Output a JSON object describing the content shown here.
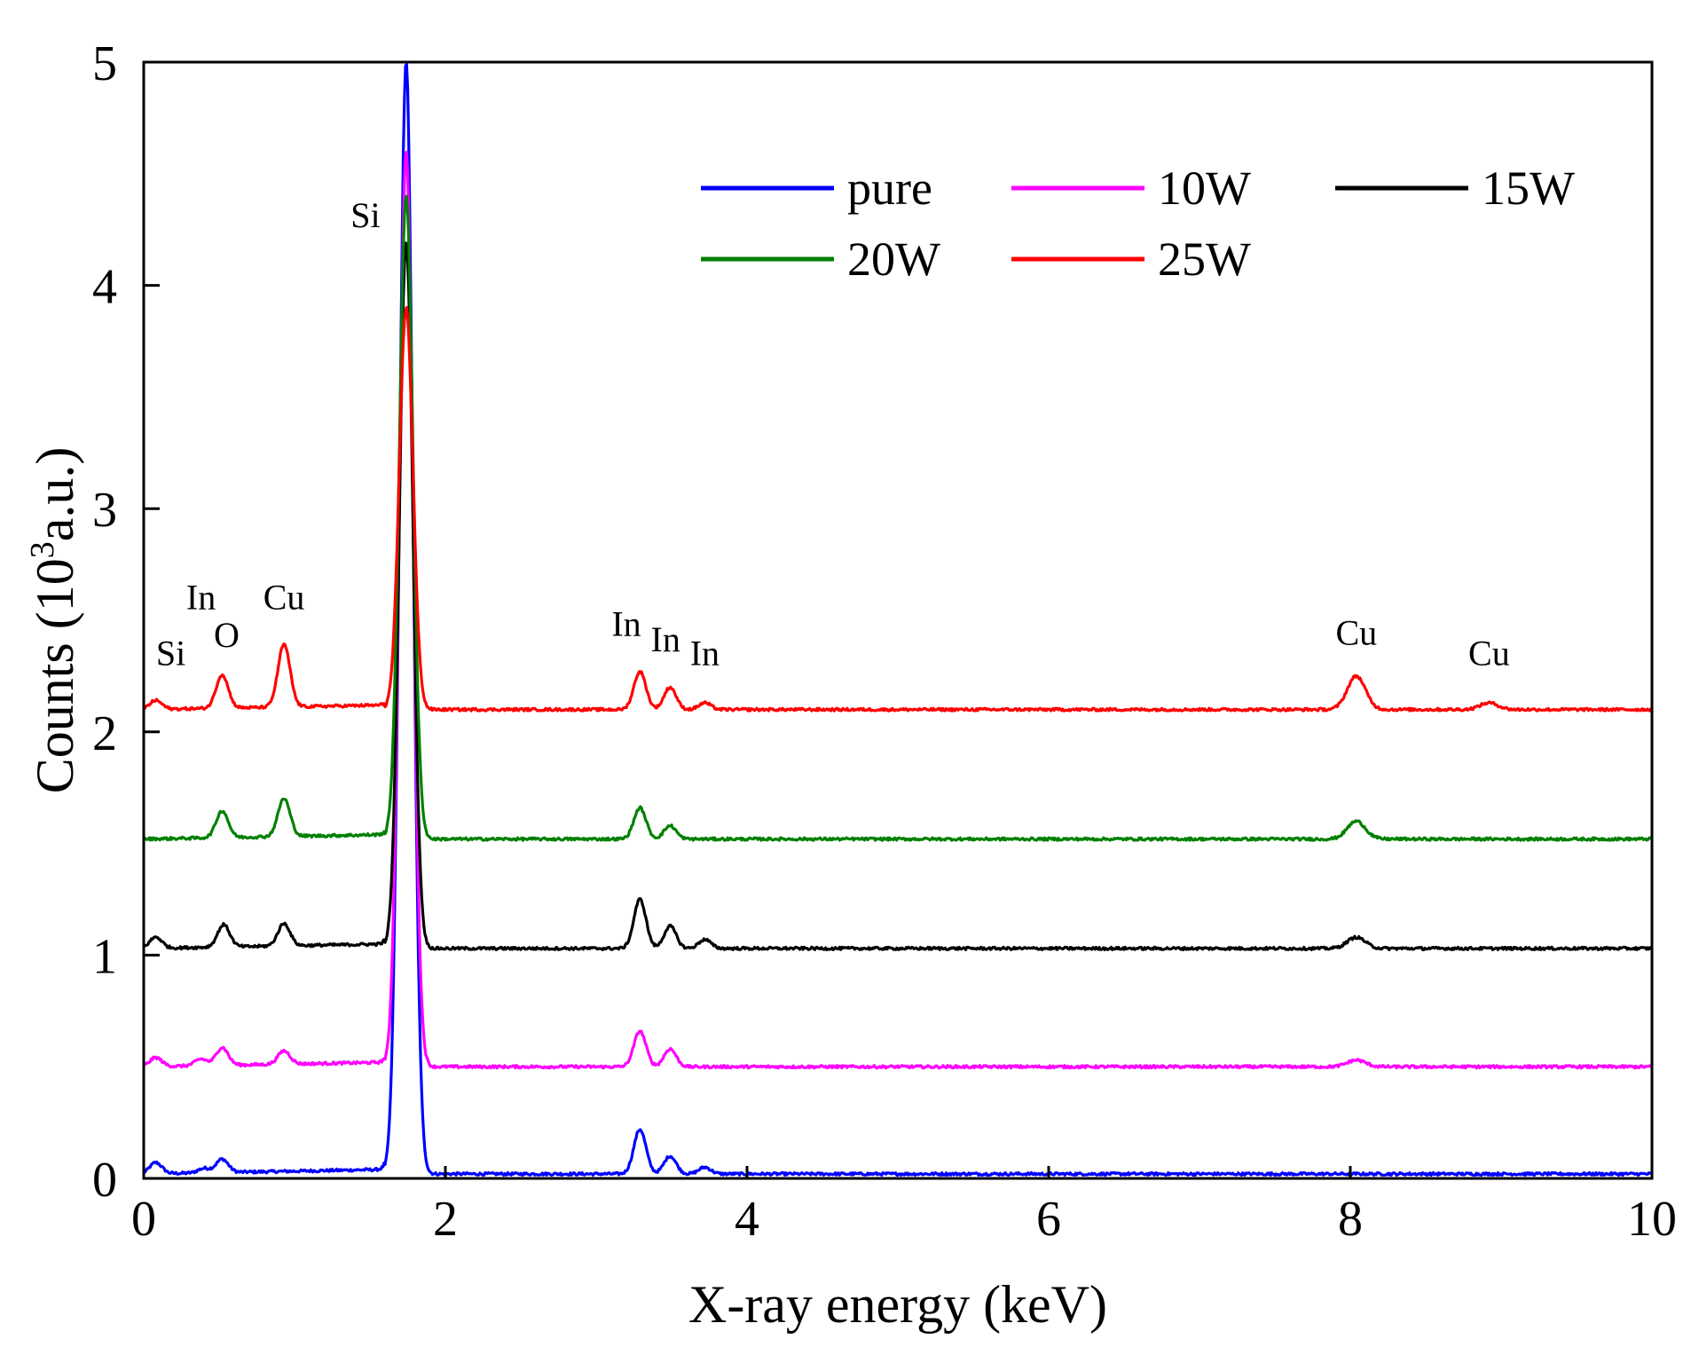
{
  "chart_data": {
    "type": "line",
    "title": "",
    "xlabel": "X-ray energy (keV)",
    "ylabel_prefix": "Counts (10",
    "ylabel_sup": "3",
    "ylabel_suffix": "a.u.)",
    "xlim": [
      0,
      10
    ],
    "ylim": [
      0,
      5
    ],
    "x_ticks": [
      0,
      2,
      4,
      6,
      8,
      10
    ],
    "y_ticks": [
      0,
      1,
      2,
      3,
      4,
      5
    ],
    "x_tick_labels": [
      "0",
      "2",
      "4",
      "6",
      "8",
      "10"
    ],
    "y_tick_labels": [
      "0",
      "1",
      "2",
      "3",
      "4",
      "5"
    ],
    "grid": false,
    "legend_position": "top-right",
    "peak_shape": {
      "Si_ka_center": 1.74,
      "Si_ka_width": 0.045,
      "minor_peak_width": 0.04,
      "Cu_ka_width": 0.06
    },
    "series": [
      {
        "name": "pure",
        "color": "#0000ff",
        "baseline": 0.02,
        "si_peak_height": 5.0,
        "peaks": [
          {
            "x": 0.08,
            "height": 0.05
          },
          {
            "x": 0.4,
            "height": 0.02
          },
          {
            "x": 0.52,
            "height": 0.06
          },
          {
            "x": 3.29,
            "height": 0.2
          },
          {
            "x": 3.49,
            "height": 0.08
          },
          {
            "x": 3.72,
            "height": 0.03
          }
        ]
      },
      {
        "name": "10W",
        "color": "#ff00ff",
        "baseline": 0.5,
        "si_peak_height": 4.6,
        "peaks": [
          {
            "x": 0.08,
            "height": 0.04
          },
          {
            "x": 0.38,
            "height": 0.03
          },
          {
            "x": 0.52,
            "height": 0.08
          },
          {
            "x": 0.93,
            "height": 0.06
          },
          {
            "x": 3.29,
            "height": 0.16
          },
          {
            "x": 3.49,
            "height": 0.08
          },
          {
            "x": 8.04,
            "height": 0.03
          }
        ]
      },
      {
        "name": "15W",
        "color": "#000000",
        "baseline": 1.03,
        "si_peak_height": 4.2,
        "peaks": [
          {
            "x": 0.08,
            "height": 0.05
          },
          {
            "x": 0.53,
            "height": 0.1
          },
          {
            "x": 0.93,
            "height": 0.1
          },
          {
            "x": 3.29,
            "height": 0.22
          },
          {
            "x": 3.49,
            "height": 0.1
          },
          {
            "x": 3.72,
            "height": 0.04
          },
          {
            "x": 8.04,
            "height": 0.05
          }
        ]
      },
      {
        "name": "20W",
        "color": "#008000",
        "baseline": 1.52,
        "si_peak_height": 4.4,
        "peaks": [
          {
            "x": 0.52,
            "height": 0.12
          },
          {
            "x": 0.93,
            "height": 0.17
          },
          {
            "x": 3.29,
            "height": 0.14
          },
          {
            "x": 3.49,
            "height": 0.06
          },
          {
            "x": 8.04,
            "height": 0.08
          }
        ]
      },
      {
        "name": "25W",
        "color": "#ff0000",
        "baseline": 2.1,
        "si_peak_height": 3.9,
        "peaks": [
          {
            "x": 0.08,
            "height": 0.04
          },
          {
            "x": 0.52,
            "height": 0.15
          },
          {
            "x": 0.93,
            "height": 0.28
          },
          {
            "x": 3.29,
            "height": 0.17
          },
          {
            "x": 3.49,
            "height": 0.1
          },
          {
            "x": 3.72,
            "height": 0.03
          },
          {
            "x": 8.04,
            "height": 0.15
          },
          {
            "x": 8.92,
            "height": 0.03
          }
        ]
      }
    ],
    "annotations": [
      {
        "text": "Si",
        "x": 0.18,
        "y": 2.3
      },
      {
        "text": "In",
        "x": 0.38,
        "y": 2.55
      },
      {
        "text": "O",
        "x": 0.55,
        "y": 2.38
      },
      {
        "text": "Cu",
        "x": 0.93,
        "y": 2.55
      },
      {
        "text": "Si",
        "x": 1.47,
        "y": 4.26
      },
      {
        "text": "In",
        "x": 3.2,
        "y": 2.43
      },
      {
        "text": "In",
        "x": 3.46,
        "y": 2.36
      },
      {
        "text": "In",
        "x": 3.72,
        "y": 2.3
      },
      {
        "text": "Cu",
        "x": 8.04,
        "y": 2.39
      },
      {
        "text": "Cu",
        "x": 8.92,
        "y": 2.3
      }
    ]
  }
}
